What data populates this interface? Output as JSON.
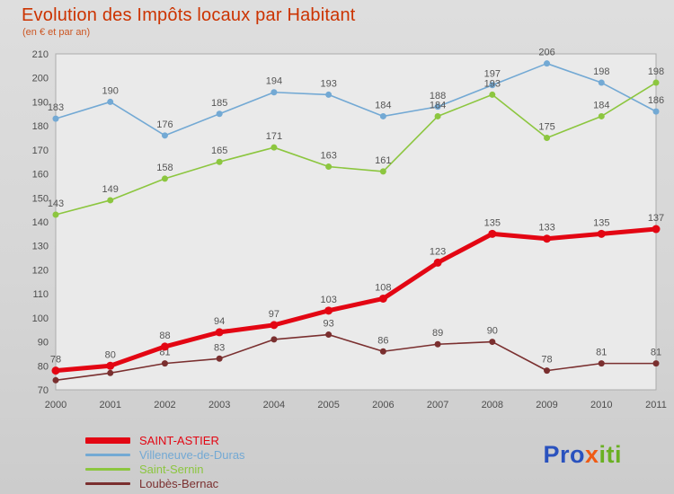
{
  "header": {
    "title": "Evolution des Impôts locaux par Habitant",
    "subtitle": "(en € et par an)"
  },
  "chart_data": {
    "type": "line",
    "x": [
      2000,
      2001,
      2002,
      2003,
      2004,
      2005,
      2006,
      2007,
      2008,
      2009,
      2010,
      2011
    ],
    "ylim": [
      70,
      210
    ],
    "yticks": [
      70,
      80,
      90,
      100,
      110,
      120,
      130,
      140,
      150,
      160,
      170,
      180,
      190,
      200,
      210
    ],
    "grid": false,
    "plot_bg": "#eaeaea",
    "legend_position": "bottom-left",
    "series": [
      {
        "name": "SAINT-ASTIER",
        "color": "#e30613",
        "width": 5,
        "marker": 4.5,
        "values": [
          78,
          80,
          88,
          94,
          97,
          103,
          108,
          123,
          135,
          133,
          135,
          137
        ]
      },
      {
        "name": "Villeneuve-de-Duras",
        "color": "#73a9d4",
        "width": 1.6,
        "marker": 3.5,
        "values": [
          183,
          190,
          176,
          185,
          194,
          193,
          184,
          188,
          197,
          206,
          198,
          186
        ]
      },
      {
        "name": "Saint-Sernin",
        "color": "#8cc63f",
        "width": 1.6,
        "marker": 3.5,
        "values": [
          143,
          149,
          158,
          165,
          171,
          163,
          161,
          184,
          193,
          175,
          184,
          198
        ]
      },
      {
        "name": "Loubès-Bernac",
        "color": "#7a2f2f",
        "width": 1.6,
        "marker": 3.5,
        "values": [
          74,
          77,
          81,
          83,
          91,
          93,
          86,
          89,
          90,
          78,
          81,
          81
        ],
        "hidden_labels": [
          0,
          1,
          4
        ]
      }
    ]
  },
  "logo": {
    "parts": [
      {
        "text": "Pro",
        "color": "#2a52be"
      },
      {
        "text": "x",
        "color": "#f05a14"
      },
      {
        "text": "iti",
        "color": "#6ab023"
      }
    ]
  }
}
